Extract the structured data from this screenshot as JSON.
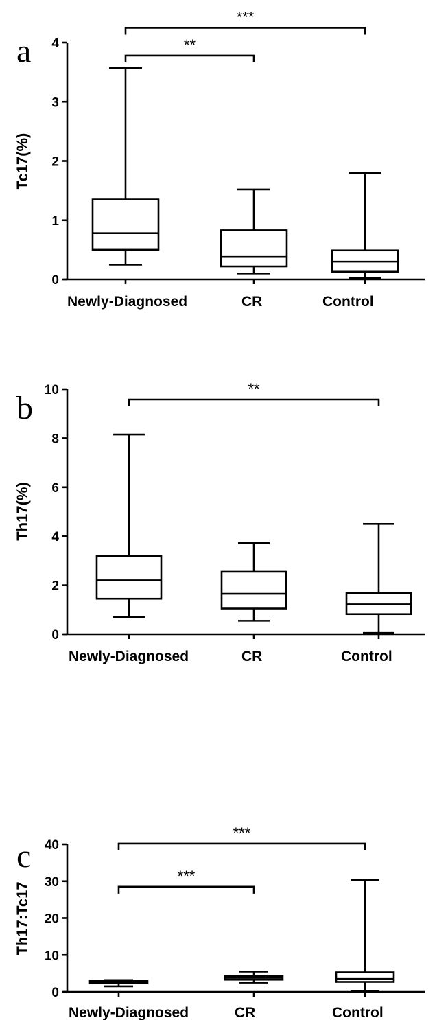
{
  "chart_data": [
    {
      "type": "box",
      "panel_label": "a",
      "ylabel": "Tc17(%)",
      "ylim": [
        0,
        4
      ],
      "yticks": [
        0,
        1,
        2,
        3,
        4
      ],
      "categories": [
        "Newly-Diagnosed",
        "CR",
        "Control"
      ],
      "boxes": [
        {
          "min": 0.25,
          "q1": 0.5,
          "median": 0.78,
          "q3": 1.35,
          "max": 3.57
        },
        {
          "min": 0.1,
          "q1": 0.22,
          "median": 0.38,
          "q3": 0.83,
          "max": 1.52
        },
        {
          "min": 0.02,
          "q1": 0.13,
          "median": 0.3,
          "q3": 0.49,
          "max": 1.8
        }
      ],
      "significance": [
        {
          "from": 0,
          "to": 1,
          "label": "**",
          "y": 3.78
        },
        {
          "from": 0,
          "to": 2,
          "label": "***",
          "y": 4.25
        }
      ]
    },
    {
      "type": "box",
      "panel_label": "b",
      "ylabel": "Th17(%)",
      "ylim": [
        0,
        10
      ],
      "yticks": [
        0,
        2,
        4,
        6,
        8,
        10
      ],
      "categories": [
        "Newly-Diagnosed",
        "CR",
        "Control"
      ],
      "boxes": [
        {
          "min": 0.7,
          "q1": 1.45,
          "median": 2.2,
          "q3": 3.2,
          "max": 8.15
        },
        {
          "min": 0.55,
          "q1": 1.05,
          "median": 1.65,
          "q3": 2.55,
          "max": 3.72
        },
        {
          "min": 0.05,
          "q1": 0.82,
          "median": 1.22,
          "q3": 1.68,
          "max": 4.5
        }
      ],
      "significance": [
        {
          "from": 0,
          "to": 2,
          "label": "**",
          "y": 9.58
        }
      ]
    },
    {
      "type": "box",
      "panel_label": "c",
      "ylabel": "Th17:Tc17",
      "ylim": [
        0,
        40
      ],
      "yticks": [
        0,
        10,
        20,
        30,
        40
      ],
      "categories": [
        "Newly-Diagnosed",
        "CR",
        "Control"
      ],
      "boxes": [
        {
          "min": 1.5,
          "q1": 2.3,
          "median": 2.6,
          "q3": 3.0,
          "max": 3.2
        },
        {
          "min": 2.5,
          "q1": 3.3,
          "median": 3.8,
          "q3": 4.3,
          "max": 5.5
        },
        {
          "min": 0.2,
          "q1": 2.7,
          "median": 3.5,
          "q3": 5.3,
          "max": 30.3
        }
      ],
      "significance": [
        {
          "from": 0,
          "to": 1,
          "label": "***",
          "y": 28.5
        },
        {
          "from": 0,
          "to": 2,
          "label": "***",
          "y": 40.2
        }
      ]
    }
  ]
}
